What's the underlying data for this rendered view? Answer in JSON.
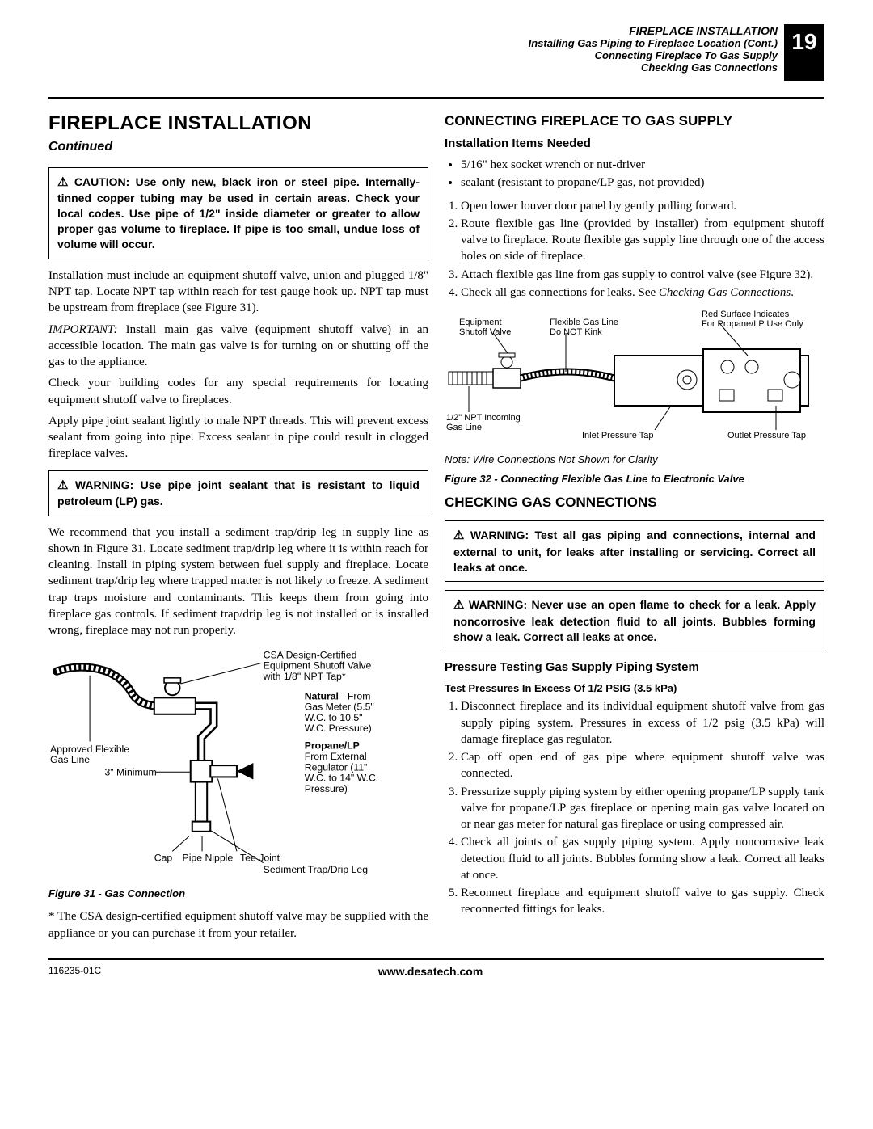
{
  "header": {
    "main": "FIREPLACE INSTALLATION",
    "sub1": "Installing Gas Piping to Fireplace Location (Cont.)",
    "sub2": "Connecting Fireplace To Gas Supply",
    "sub3": "Checking Gas Connections",
    "page": "19"
  },
  "left": {
    "title": "FIREPLACE INSTALLATION",
    "continued": "Continued",
    "caution": "CAUTION: Use only new, black iron or steel pipe. Internally-tinned copper tubing may be used in certain areas. Check your local codes. Use pipe of 1/2\" inside diameter or greater to allow proper gas volume to fireplace. If pipe is too small, undue loss of volume will occur.",
    "p1": "Installation must include an equipment shutoff valve, union and plugged 1/8\" NPT tap. Locate NPT tap within reach for test gauge hook up. NPT tap must be upstream from fireplace (see Figure 31).",
    "p2a": "IMPORTANT:",
    "p2b": " Install main gas valve (equipment shutoff valve) in an accessible location. The main gas valve is for turning on or shutting off the gas to the appliance.",
    "p3": "Check your building codes for any special requirements for locating equipment shutoff valve to fireplaces.",
    "p4": "Apply pipe joint sealant lightly to male NPT threads. This will prevent excess sealant from going into pipe. Excess sealant in pipe could result in clogged fireplace valves.",
    "warn1": "WARNING: Use pipe joint sealant that is resistant to liquid petroleum (LP) gas.",
    "p5": "We recommend that you install a sediment trap/drip leg in supply line as shown in Figure 31. Locate sediment trap/drip leg where it is within reach for cleaning. Install in piping system between fuel supply and fireplace. Locate sediment trap/drip leg where trapped matter is not likely to freeze. A sediment trap traps moisture and contaminants. This keeps them from going into fireplace gas controls. If sediment trap/drip leg is not installed or is installed wrong, fireplace may not run properly.",
    "fig31": {
      "labels": {
        "csa": "CSA Design-Certified\nEquipment Shutoff Valve\nwith 1/8\" NPT Tap*",
        "natural_bold": "Natural",
        "natural_rest": " - From\nGas Meter (5.5\"\nW.C. to 10.5\"\nW.C. Pressure)",
        "propane_bold": "Propane/LP",
        "propane_rest": "\nFrom External\nRegulator (11\"\nW.C. to 14\" W.C.\nPressure)",
        "flex": "Approved Flexible\nGas Line",
        "min": "3\" Minimum",
        "cap": "Cap",
        "nipple": "Pipe Nipple",
        "tee": "Tee Joint",
        "sediment": "Sediment Trap/Drip Leg"
      },
      "caption": "Figure 31 - Gas Connection"
    },
    "footnote": "* The CSA design-certified equipment shutoff valve may be supplied with the appliance or you can purchase it from your retailer."
  },
  "right": {
    "h_connect": "CONNECTING FIREPLACE TO GAS SUPPLY",
    "h_items": "Installation Items Needed",
    "bullets": [
      "5/16\" hex socket wrench or nut-driver",
      "sealant (resistant to propane/LP gas, not provided)"
    ],
    "steps_connect": [
      "Open lower louver door panel by gently pulling forward.",
      "Route flexible gas line (provided by installer) from equipment shutoff valve to fireplace. Route flexible gas supply line through one of the access holes on side of fireplace.",
      "Attach flexible gas line from gas supply to control valve (see Figure 32).",
      "Check all gas connections for leaks. See "
    ],
    "step4_ref": "Checking Gas Connections",
    "fig32": {
      "labels": {
        "red": "Red Surface Indicates\nFor Propane/LP Use Only",
        "shutoff": "Equipment\nShutoff Valve",
        "flex": "Flexible Gas Line\nDo NOT Kink",
        "incoming": "1/2\" NPT Incoming\nGas Line",
        "inlet": "Inlet Pressure Tap",
        "outlet": "Outlet Pressure Tap"
      },
      "note": "Note: Wire Connections Not Shown for Clarity",
      "caption": "Figure 32 - Connecting Flexible Gas Line to Electronic Valve"
    },
    "h_check": "CHECKING GAS CONNECTIONS",
    "warn2": "WARNING: Test all gas piping and connections, internal and external to unit, for leaks after installing or servicing. Correct all leaks at once.",
    "warn3": "WARNING: Never use an open flame to check for a leak. Apply noncorrosive leak detection fluid to all joints. Bubbles forming show a leak. Correct all leaks at once.",
    "h_pressure": "Pressure Testing Gas Supply Piping System",
    "h_excess": "Test Pressures In Excess Of 1/2 PSIG (3.5 kPa)",
    "steps_pressure": [
      "Disconnect fireplace and its individual equipment shutoff valve from gas supply piping system. Pressures in excess of 1/2 psig (3.5 kPa) will damage fireplace gas regulator.",
      "Cap off open end of gas pipe where equipment shutoff valve was connected.",
      "Pressurize supply piping system by either opening propane/LP supply tank valve for propane/LP gas fireplace or opening main gas valve located on or near gas meter for natural gas fireplace or using compressed air.",
      "Check all joints of gas supply piping system. Apply noncorrosive leak detection fluid to all joints. Bubbles forming show a leak. Correct all leaks at once.",
      "Reconnect fireplace and equipment shutoff valve to gas supply. Check reconnected fittings for leaks."
    ]
  },
  "footer": {
    "code": "116235-01C",
    "url": "www.desatech.com"
  }
}
